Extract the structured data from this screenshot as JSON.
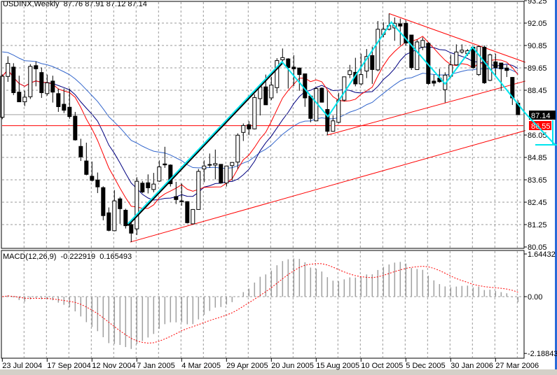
{
  "header": {
    "symbol_timeframe": "USDINX,Weekly",
    "open": "87.76",
    "high": "87.91",
    "low": "87.12",
    "close": "87.14"
  },
  "macd_header": {
    "label": "MACD(12,26,9)",
    "macd_value": "-0.222919",
    "signal_value": "0.165493"
  },
  "colors": {
    "bull_body": "#ffffff",
    "bear_body": "#000000",
    "fast_ma": "#ff0000",
    "mid_ma": "#000080",
    "slow_ma": "#3366cc",
    "trendline": "#ff0000",
    "zigzag": "#00e5ee",
    "grid": "#999999",
    "histogram": "#a0a0a0",
    "signal": "#ff0000"
  },
  "chart_data": [
    {
      "type": "candlestick",
      "title": "USDINX,Weekly",
      "x_tick_labels": [
        "23 Jul 2004",
        "17 Sep 2004",
        "12 Nov 2004",
        "7 Jan 2005",
        "4 Mar 2005",
        "29 Apr 2005",
        "20 Jun 2005",
        "15 Aug 2005",
        "10 Oct 2005",
        "5 Dec 2005",
        "30 Jan 2006",
        "27 Mar 2006"
      ],
      "x_tick_every_bars": 8,
      "y_tick_labels": [
        "93.25",
        "92.05",
        "90.85",
        "89.65",
        "88.45",
        "86.05",
        "84.85",
        "83.65",
        "82.45",
        "81.25",
        "80.05"
      ],
      "ylim": [
        80.05,
        93.25
      ],
      "grid": true,
      "price_labels": {
        "last": "87.14",
        "level": "86.55"
      },
      "ohlc": [
        [
          87.0,
          89.3,
          86.9,
          89.2
        ],
        [
          89.19,
          90.27,
          88.9,
          89.89
        ],
        [
          89.69,
          89.9,
          88.19,
          88.32
        ],
        [
          88.35,
          89.23,
          87.83,
          87.83
        ],
        [
          87.83,
          88.42,
          87.6,
          88.08
        ],
        [
          88.1,
          89.85,
          87.98,
          89.73
        ],
        [
          89.77,
          90.0,
          88.66,
          89.6
        ],
        [
          89.4,
          89.67,
          88.04,
          88.32
        ],
        [
          88.27,
          89.29,
          88.16,
          88.85
        ],
        [
          88.94,
          89.23,
          87.79,
          88.35
        ],
        [
          88.27,
          88.54,
          87.29,
          87.57
        ],
        [
          87.7,
          88.54,
          87.23,
          87.38
        ],
        [
          87.54,
          88.54,
          86.92,
          87.04
        ],
        [
          87.06,
          87.29,
          85.75,
          85.79
        ],
        [
          85.44,
          85.85,
          84.66,
          84.88
        ],
        [
          84.66,
          85.64,
          83.89,
          83.94
        ],
        [
          83.84,
          84.63,
          83.56,
          83.62
        ],
        [
          83.64,
          84.04,
          82.94,
          83.27
        ],
        [
          83.23,
          83.3,
          81.48,
          81.73
        ],
        [
          81.88,
          82.17,
          80.89,
          80.94
        ],
        [
          80.92,
          83.1,
          80.89,
          82.52
        ],
        [
          82.63,
          82.73,
          81.29,
          82.1
        ],
        [
          82.02,
          82.1,
          81.04,
          81.19
        ],
        [
          81.25,
          81.35,
          80.31,
          80.79
        ],
        [
          81.02,
          83.79,
          80.69,
          83.57
        ],
        [
          83.47,
          83.58,
          82.94,
          83.0
        ],
        [
          83.49,
          83.94,
          82.92,
          83.22
        ],
        [
          83.13,
          84.02,
          82.98,
          83.42
        ],
        [
          83.58,
          84.69,
          83.54,
          84.34
        ],
        [
          84.5,
          85.42,
          84.29,
          84.45
        ],
        [
          84.44,
          84.48,
          83.29,
          83.44
        ],
        [
          82.75,
          83.54,
          82.35,
          82.59
        ],
        [
          82.52,
          83.45,
          82.26,
          82.48
        ],
        [
          82.48,
          82.5,
          81.31,
          81.35
        ],
        [
          81.29,
          82.08,
          81.27,
          82.06
        ],
        [
          82.06,
          84.23,
          82.04,
          84.1
        ],
        [
          84.23,
          84.69,
          83.52,
          84.39
        ],
        [
          84.47,
          85.06,
          84.29,
          84.46
        ],
        [
          84.44,
          85.27,
          83.67,
          84.52
        ],
        [
          84.48,
          84.48,
          83.44,
          83.48
        ],
        [
          83.48,
          84.41,
          83.29,
          84.39
        ],
        [
          84.41,
          84.6,
          83.6,
          84.58
        ],
        [
          84.6,
          86.14,
          84.23,
          86.04
        ],
        [
          86.19,
          86.67,
          85.73,
          86.56
        ],
        [
          86.6,
          86.79,
          86.04,
          86.38
        ],
        [
          86.38,
          88.23,
          86.35,
          88.06
        ],
        [
          88.0,
          88.79,
          87.1,
          88.63
        ],
        [
          88.63,
          89.29,
          87.67,
          87.67
        ],
        [
          88.04,
          89.17,
          87.92,
          88.73
        ],
        [
          88.59,
          90.17,
          88.29,
          90.04
        ],
        [
          90.08,
          90.69,
          89.98,
          90.2
        ],
        [
          90.13,
          90.17,
          88.54,
          89.67
        ],
        [
          89.69,
          90.33,
          88.67,
          89.6
        ],
        [
          89.64,
          89.67,
          88.42,
          89.29
        ],
        [
          89.33,
          89.33,
          87.56,
          88.04
        ],
        [
          88.14,
          88.19,
          86.73,
          86.94
        ],
        [
          86.81,
          88.6,
          86.79,
          88.54
        ],
        [
          88.56,
          88.6,
          87.79,
          87.81
        ],
        [
          87.42,
          88.42,
          86.04,
          86.25
        ],
        [
          86.25,
          87.1,
          86.23,
          86.81
        ],
        [
          86.73,
          88.31,
          86.67,
          87.92
        ],
        [
          87.92,
          89.17,
          87.85,
          89.17
        ],
        [
          89.29,
          89.81,
          89.1,
          89.5
        ],
        [
          89.41,
          90.19,
          88.66,
          88.79
        ],
        [
          88.79,
          90.41,
          88.7,
          89.29
        ],
        [
          89.48,
          90.66,
          89.1,
          90.26
        ],
        [
          90.31,
          90.79,
          88.79,
          89.56
        ],
        [
          89.54,
          92.16,
          89.47,
          91.72
        ],
        [
          91.44,
          92.1,
          91.29,
          91.72
        ],
        [
          91.72,
          92.56,
          91.66,
          91.91
        ],
        [
          91.79,
          92.35,
          91.1,
          92.04
        ],
        [
          92.01,
          92.29,
          90.85,
          91.89
        ],
        [
          92.04,
          92.19,
          90.85,
          90.98
        ],
        [
          91.41,
          91.41,
          89.54,
          89.66
        ],
        [
          89.56,
          91.16,
          89.54,
          91.04
        ],
        [
          90.76,
          91.29,
          90.6,
          91.12
        ],
        [
          90.97,
          91.04,
          88.73,
          88.81
        ],
        [
          88.94,
          89.29,
          88.66,
          88.83
        ],
        [
          89.1,
          89.6,
          88.85,
          88.91
        ],
        [
          88.48,
          89.41,
          87.79,
          89.26
        ],
        [
          89.2,
          90.35,
          89.1,
          89.81
        ],
        [
          89.81,
          90.91,
          89.79,
          90.5
        ],
        [
          90.5,
          90.91,
          90.41,
          90.6
        ],
        [
          90.41,
          90.66,
          90.29,
          90.57
        ],
        [
          90.76,
          90.79,
          89.6,
          89.66
        ],
        [
          89.29,
          90.85,
          89.22,
          90.79
        ],
        [
          90.76,
          90.85,
          88.79,
          88.85
        ],
        [
          88.98,
          90.41,
          88.94,
          90.35
        ],
        [
          89.97,
          90.41,
          89.16,
          89.66
        ],
        [
          89.91,
          89.91,
          88.41,
          89.6
        ],
        [
          89.64,
          89.81,
          89.16,
          89.51
        ],
        [
          89.14,
          89.16,
          87.66,
          88.04
        ],
        [
          87.76,
          87.91,
          87.12,
          87.14
        ]
      ],
      "trendlines": [
        {
          "from": [
            22.8,
            80.31
          ],
          "to": [
            93.3,
            86.29
          ]
        },
        {
          "from": [
            58,
            86.05
          ],
          "to": [
            93.3,
            88.94
          ]
        },
        {
          "from": [
            69,
            92.56
          ],
          "to": [
            93.3,
            89.95
          ]
        }
      ],
      "horizontal_lines": [
        {
          "price": 87.14,
          "color": "#a0a0a0"
        },
        {
          "price": 86.55,
          "color": "#ff0000"
        }
      ],
      "zigzag": [
        [
          22.4,
          81.29
        ],
        [
          49.9,
          89.98
        ],
        [
          58.1,
          87.04
        ],
        [
          69.4,
          92.1
        ],
        [
          79,
          88.79
        ],
        [
          83.9,
          90.76
        ],
        [
          93.3,
          87.22
        ],
        [
          98.6,
          85.53
        ]
      ]
    },
    {
      "type": "bar+line",
      "title": "MACD(12,26,9)",
      "y_tick_labels": [
        "1.64432",
        "0.00",
        "-2.18843"
      ],
      "ylim": [
        -2.18843,
        1.64432
      ],
      "params": [
        12,
        26,
        9
      ]
    }
  ]
}
